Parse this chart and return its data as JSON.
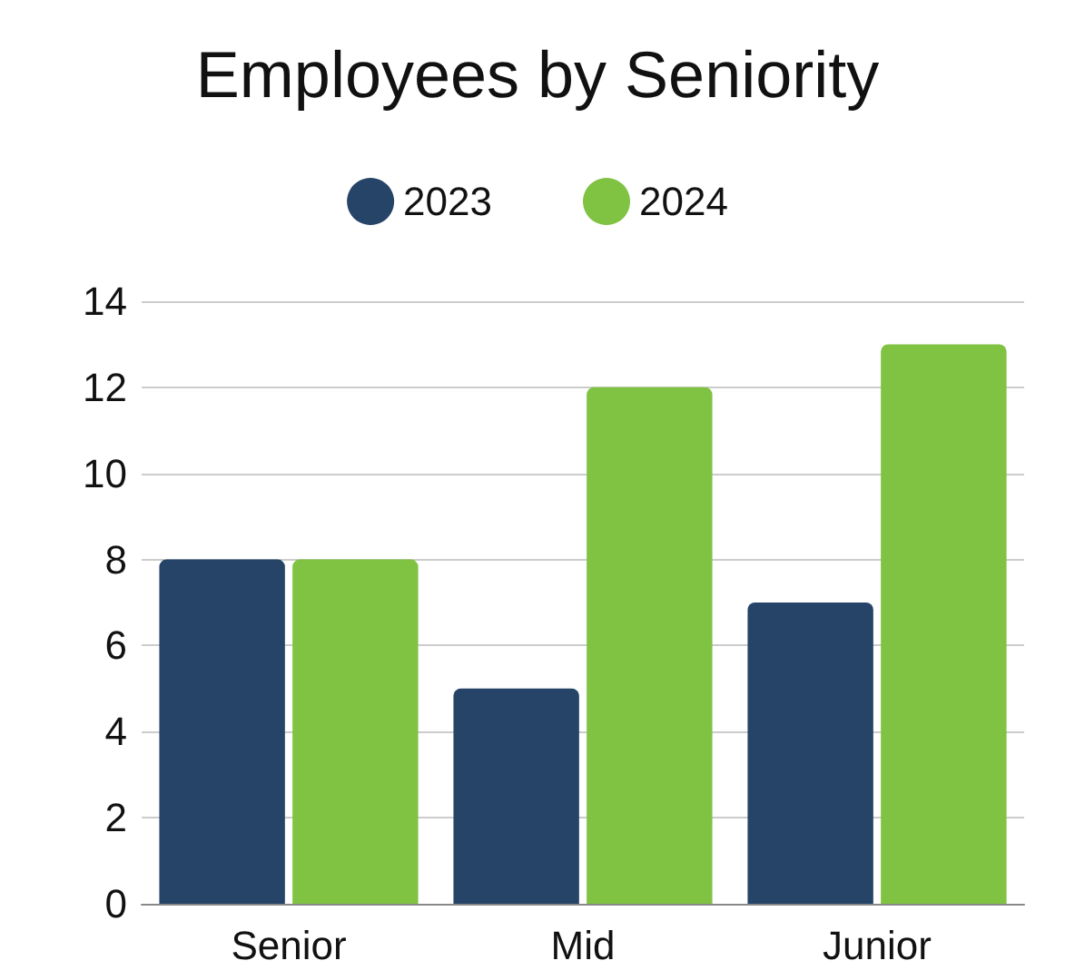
{
  "chart_data": {
    "type": "bar",
    "title": "Employees by Seniority",
    "categories": [
      "Senior",
      "Mid",
      "Junior"
    ],
    "series": [
      {
        "name": "2023",
        "color": "#264467",
        "values": [
          8,
          5,
          7
        ]
      },
      {
        "name": "2024",
        "color": "#80c242",
        "values": [
          8,
          12,
          13
        ]
      }
    ],
    "ylim": [
      0,
      14
    ],
    "yticks": [
      0,
      2,
      4,
      6,
      8,
      10,
      12,
      14
    ],
    "grid": "y",
    "legend": "top"
  }
}
